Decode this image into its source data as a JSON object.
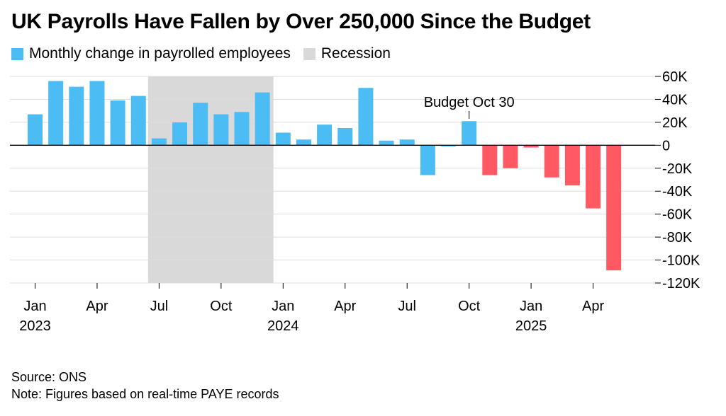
{
  "title": "UK Payrolls Have Fallen by Over 250,000 Since the Budget",
  "legend": {
    "series_label": "Monthly change in payrolled employees",
    "recession_label": "Recession"
  },
  "colors": {
    "bar_blue": "#4cbcf5",
    "bar_red": "#ff5a63",
    "recession": "#d9d9d9",
    "grid": "#dddddd",
    "axis": "#000000"
  },
  "footer": {
    "source": "Source: ONS",
    "note": "Note: Figures based on real-time PAYE records"
  },
  "chart_data": {
    "type": "bar",
    "annotation": {
      "text": "Budget Oct 30",
      "at_index": 21
    },
    "recession_span": {
      "from_index": 6,
      "to_index": 11
    },
    "red_from_index": 22,
    "ylim": [
      -120000,
      60000
    ],
    "y_ticks": [
      60000,
      40000,
      20000,
      0,
      -20000,
      -40000,
      -60000,
      -80000,
      -100000,
      -120000
    ],
    "y_tick_labels": [
      "60K",
      "40K",
      "20K",
      "0",
      "-20K",
      "-40K",
      "-60K",
      "-80K",
      "-100K",
      "-120K"
    ],
    "x_ticks": [
      {
        "index": 0,
        "month": "Jan",
        "year": "2023"
      },
      {
        "index": 3,
        "month": "Apr",
        "year": ""
      },
      {
        "index": 6,
        "month": "Jul",
        "year": ""
      },
      {
        "index": 9,
        "month": "Oct",
        "year": ""
      },
      {
        "index": 12,
        "month": "Jan",
        "year": "2024"
      },
      {
        "index": 15,
        "month": "Apr",
        "year": ""
      },
      {
        "index": 18,
        "month": "Jul",
        "year": ""
      },
      {
        "index": 21,
        "month": "Oct",
        "year": ""
      },
      {
        "index": 24,
        "month": "Jan",
        "year": "2025"
      },
      {
        "index": 27,
        "month": "Apr",
        "year": ""
      }
    ],
    "categories": [
      "2023-01",
      "2023-02",
      "2023-03",
      "2023-04",
      "2023-05",
      "2023-06",
      "2023-07",
      "2023-08",
      "2023-09",
      "2023-10",
      "2023-11",
      "2023-12",
      "2024-01",
      "2024-02",
      "2024-03",
      "2024-04",
      "2024-05",
      "2024-06",
      "2024-07",
      "2024-08",
      "2024-09",
      "2024-10",
      "2024-11",
      "2024-12",
      "2025-01",
      "2025-02",
      "2025-03",
      "2025-04",
      "2025-05"
    ],
    "series": [
      {
        "name": "Monthly change in payrolled employees",
        "values": [
          27000,
          56000,
          51000,
          56000,
          39000,
          43000,
          6000,
          20000,
          37000,
          27000,
          29000,
          46000,
          11000,
          5000,
          18000,
          15000,
          50000,
          4000,
          5000,
          -26000,
          -1000,
          21000,
          -26000,
          -20000,
          -2000,
          -28000,
          -35000,
          -55000,
          -109000
        ]
      }
    ]
  }
}
